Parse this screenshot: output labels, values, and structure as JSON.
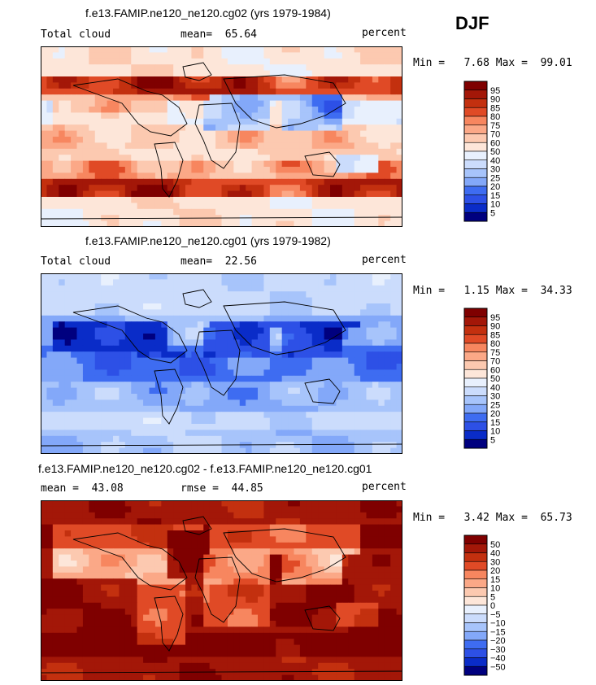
{
  "season": "DJF",
  "colors": {
    "abs": [
      "#00007f",
      "#0a2cc8",
      "#2d50e6",
      "#3e6cf1",
      "#5a88f5",
      "#83a8f9",
      "#a7c4fb",
      "#cbdcfc",
      "#e8f0fd",
      "#fde6d9",
      "#fcc9b0",
      "#fba887",
      "#f7865f",
      "#f0673f",
      "#e04a26",
      "#c3300f",
      "#a31708",
      "#7f0000"
    ],
    "diff": [
      "#00007f",
      "#0a2cc8",
      "#2d50e6",
      "#3e6cf1",
      "#5a88f5",
      "#83a8f9",
      "#a7c4fb",
      "#cbdcfc",
      "#e8f0fd",
      "#fde6d9",
      "#fcc9b0",
      "#fba887",
      "#f7865f",
      "#f0673f",
      "#e04a26",
      "#c3300f",
      "#a31708",
      "#7f0000"
    ]
  },
  "chart_data": [
    {
      "type": "heatmap",
      "title": "f.e13.FAMIP.ne120_ne120.cg02 (yrs 1979-1984)",
      "left_label": "Total cloud",
      "stat1_label": "mean=",
      "stat1_value": "65.64",
      "units": "percent",
      "min_label": "Min =",
      "min_value": "7.68",
      "max_label": "Max =",
      "max_value": "99.01",
      "levels": [
        "5",
        "10",
        "15",
        "20",
        "25",
        "30",
        "40",
        "50",
        "60",
        "70",
        "75",
        "80",
        "85",
        "90",
        "95"
      ]
    },
    {
      "type": "heatmap",
      "title": "f.e13.FAMIP.ne120_ne120.cg01 (yrs 1979-1982)",
      "left_label": "Total cloud",
      "stat1_label": "mean=",
      "stat1_value": "22.56",
      "units": "percent",
      "min_label": "Min =",
      "min_value": "1.15",
      "max_label": "Max =",
      "max_value": "34.33",
      "levels": [
        "5",
        "10",
        "15",
        "20",
        "25",
        "30",
        "40",
        "50",
        "60",
        "70",
        "75",
        "80",
        "85",
        "90",
        "95"
      ]
    },
    {
      "type": "heatmap",
      "title": "f.e13.FAMIP.ne120_ne120.cg02 - f.e13.FAMIP.ne120_ne120.cg01",
      "left_label": "mean =",
      "left_value": "43.08",
      "stat1_label": "rmse =",
      "stat1_value": "44.85",
      "units": "percent",
      "min_label": "Min =",
      "min_value": "3.42",
      "max_label": "Max =",
      "max_value": "65.73",
      "levels": [
        "-50",
        "-40",
        "-30",
        "-20",
        "-15",
        "-10",
        "-5",
        "0",
        "5",
        "10",
        "15",
        "20",
        "30",
        "40",
        "50"
      ]
    }
  ]
}
